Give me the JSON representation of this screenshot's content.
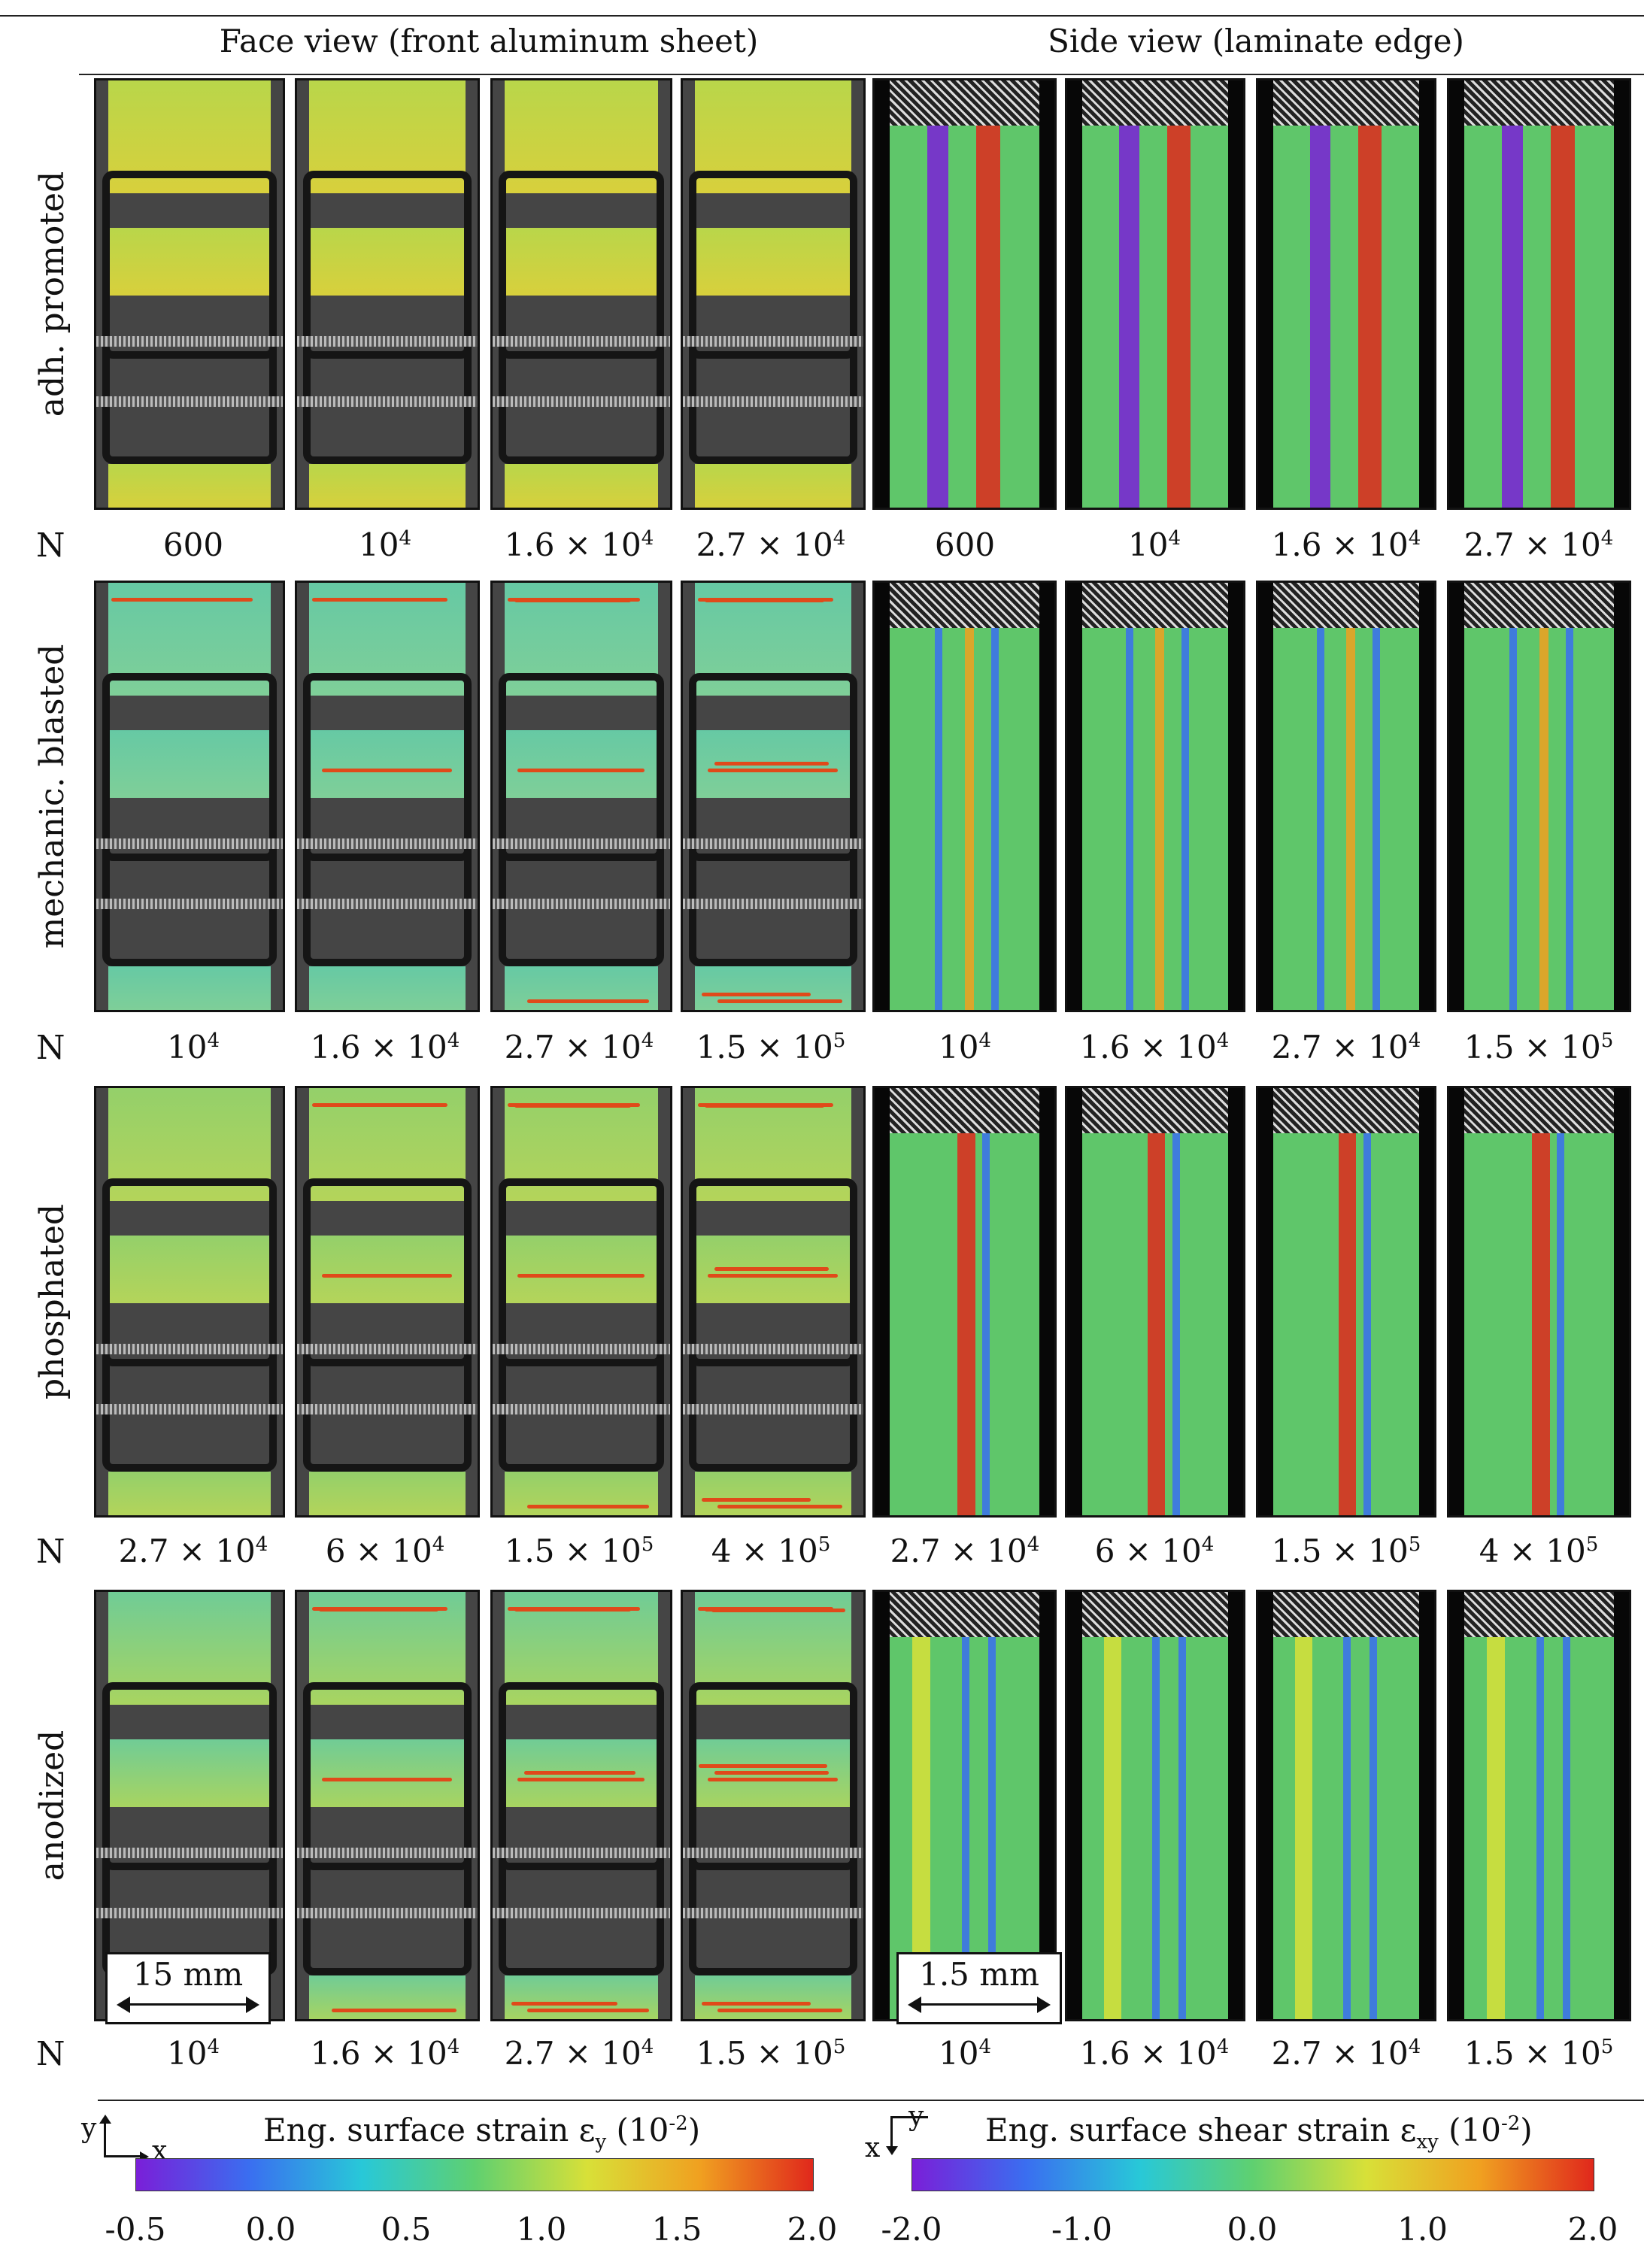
{
  "headers": {
    "face": "Face view (front aluminum sheet)",
    "side": "Side view (laminate edge)"
  },
  "n_symbol": "N",
  "rows": [
    {
      "label": "adh. promoted",
      "cycles": [
        {
          "mant": "600",
          "exp": ""
        },
        {
          "mant": "10",
          "exp": "4"
        },
        {
          "mant": "1.6 × 10",
          "exp": "4"
        },
        {
          "mant": "2.7 × 10",
          "exp": "4"
        },
        {
          "mant": "600",
          "exp": ""
        },
        {
          "mant": "10",
          "exp": "4"
        },
        {
          "mant": "1.6 × 10",
          "exp": "4"
        },
        {
          "mant": "2.7 × 10",
          "exp": "4"
        }
      ]
    },
    {
      "label": "mechanic. blasted",
      "cycles": [
        {
          "mant": "10",
          "exp": "4"
        },
        {
          "mant": "1.6 × 10",
          "exp": "4"
        },
        {
          "mant": "2.7 × 10",
          "exp": "4"
        },
        {
          "mant": "1.5 × 10",
          "exp": "5"
        },
        {
          "mant": "10",
          "exp": "4"
        },
        {
          "mant": "1.6 × 10",
          "exp": "4"
        },
        {
          "mant": "2.7 × 10",
          "exp": "4"
        },
        {
          "mant": "1.5 × 10",
          "exp": "5"
        }
      ]
    },
    {
      "label": "phosphated",
      "cycles": [
        {
          "mant": "2.7 × 10",
          "exp": "4"
        },
        {
          "mant": "6 × 10",
          "exp": "4"
        },
        {
          "mant": "1.5 × 10",
          "exp": "5"
        },
        {
          "mant": "4 × 10",
          "exp": "5"
        },
        {
          "mant": "2.7 × 10",
          "exp": "4"
        },
        {
          "mant": "6 × 10",
          "exp": "4"
        },
        {
          "mant": "1.5 × 10",
          "exp": "5"
        },
        {
          "mant": "4 × 10",
          "exp": "5"
        }
      ]
    },
    {
      "label": "anodized",
      "cycles": [
        {
          "mant": "10",
          "exp": "4"
        },
        {
          "mant": "1.6 × 10",
          "exp": "4"
        },
        {
          "mant": "2.7 × 10",
          "exp": "4"
        },
        {
          "mant": "1.5 × 10",
          "exp": "5"
        },
        {
          "mant": "10",
          "exp": "4"
        },
        {
          "mant": "1.6 × 10",
          "exp": "4"
        },
        {
          "mant": "2.7 × 10",
          "exp": "4"
        },
        {
          "mant": "1.5 × 10",
          "exp": "5"
        }
      ]
    }
  ],
  "scale_bars": {
    "face": "15 mm",
    "side": "1.5 mm"
  },
  "colorbars": {
    "left": {
      "axes": {
        "vertical": "y",
        "horizontal": "x"
      },
      "title_prefix": "Eng. surface strain ε",
      "title_sub": "y",
      "title_unit_prefix": " (10",
      "title_unit_exp": "-2",
      "title_unit_suffix": ")",
      "ticks": [
        "-0.5",
        "0.0",
        "0.5",
        "1.0",
        "1.5",
        "2.0"
      ],
      "range": [
        -0.5,
        2.0
      ]
    },
    "right": {
      "axes": {
        "horizontal": "x",
        "vertical": "y"
      },
      "title_prefix": "Eng. surface shear strain ε",
      "title_sub": "xy",
      "title_unit_prefix": " (10",
      "title_unit_exp": "-2",
      "title_unit_suffix": ")",
      "ticks": [
        "-2.0",
        "-1.0",
        "0.0",
        "1.0",
        "2.0"
      ],
      "range": [
        -2.0,
        2.0
      ]
    },
    "gradient": [
      "#7a1fd8",
      "#3a6ef0",
      "#28c8d8",
      "#5fd070",
      "#d8e038",
      "#f0a020",
      "#e0281c"
    ]
  }
}
